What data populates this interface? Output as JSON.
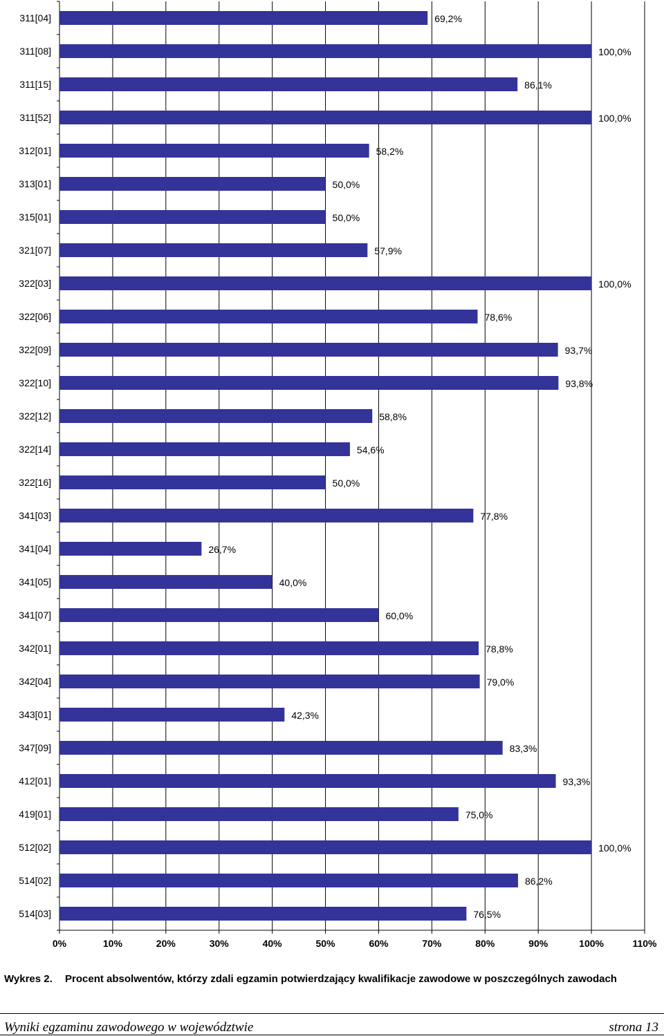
{
  "chart_data": {
    "type": "bar",
    "orientation": "horizontal",
    "categories": [
      "311[04]",
      "311[08]",
      "311[15]",
      "311[52]",
      "312[01]",
      "313[01]",
      "315[01]",
      "321[07]",
      "322[03]",
      "322[06]",
      "322[09]",
      "322[10]",
      "322[12]",
      "322[14]",
      "322[16]",
      "341[03]",
      "341[04]",
      "341[05]",
      "341[07]",
      "342[01]",
      "342[04]",
      "343[01]",
      "347[09]",
      "412[01]",
      "419[01]",
      "512[02]",
      "514[02]",
      "514[03]"
    ],
    "values": [
      69.2,
      100.0,
      86.1,
      100.0,
      58.2,
      50.0,
      50.0,
      57.9,
      100.0,
      78.6,
      93.7,
      93.8,
      58.8,
      54.6,
      50.0,
      77.8,
      26.7,
      40.0,
      60.0,
      78.8,
      79.0,
      42.3,
      83.3,
      93.3,
      75.0,
      100.0,
      86.2,
      76.5
    ],
    "value_labels": [
      "69,2%",
      "100,0%",
      "86,1%",
      "100,0%",
      "58,2%",
      "50,0%",
      "50,0%",
      "57,9%",
      "100,0%",
      "78,6%",
      "93,7%",
      "93,8%",
      "58,8%",
      "54,6%",
      "50,0%",
      "77,8%",
      "26,7%",
      "40,0%",
      "60,0%",
      "78,8%",
      "79,0%",
      "42,3%",
      "83,3%",
      "93,3%",
      "75,0%",
      "100,0%",
      "86,2%",
      "76,5%"
    ],
    "x_ticks": [
      "0%",
      "10%",
      "20%",
      "30%",
      "40%",
      "50%",
      "60%",
      "70%",
      "80%",
      "90%",
      "100%",
      "110%"
    ],
    "xlim": [
      0,
      110
    ],
    "grid": "vertical",
    "bar_color": "#333399"
  },
  "caption": {
    "label": "Wykres 2.",
    "text": "Procent absolwentów, którzy zdali egzamin potwierdzający kwalifikacje zawodowe w poszczególnych zawodach"
  },
  "footer": {
    "left": "Wyniki egzaminu zawodowego w województwie",
    "right": "strona 13"
  }
}
